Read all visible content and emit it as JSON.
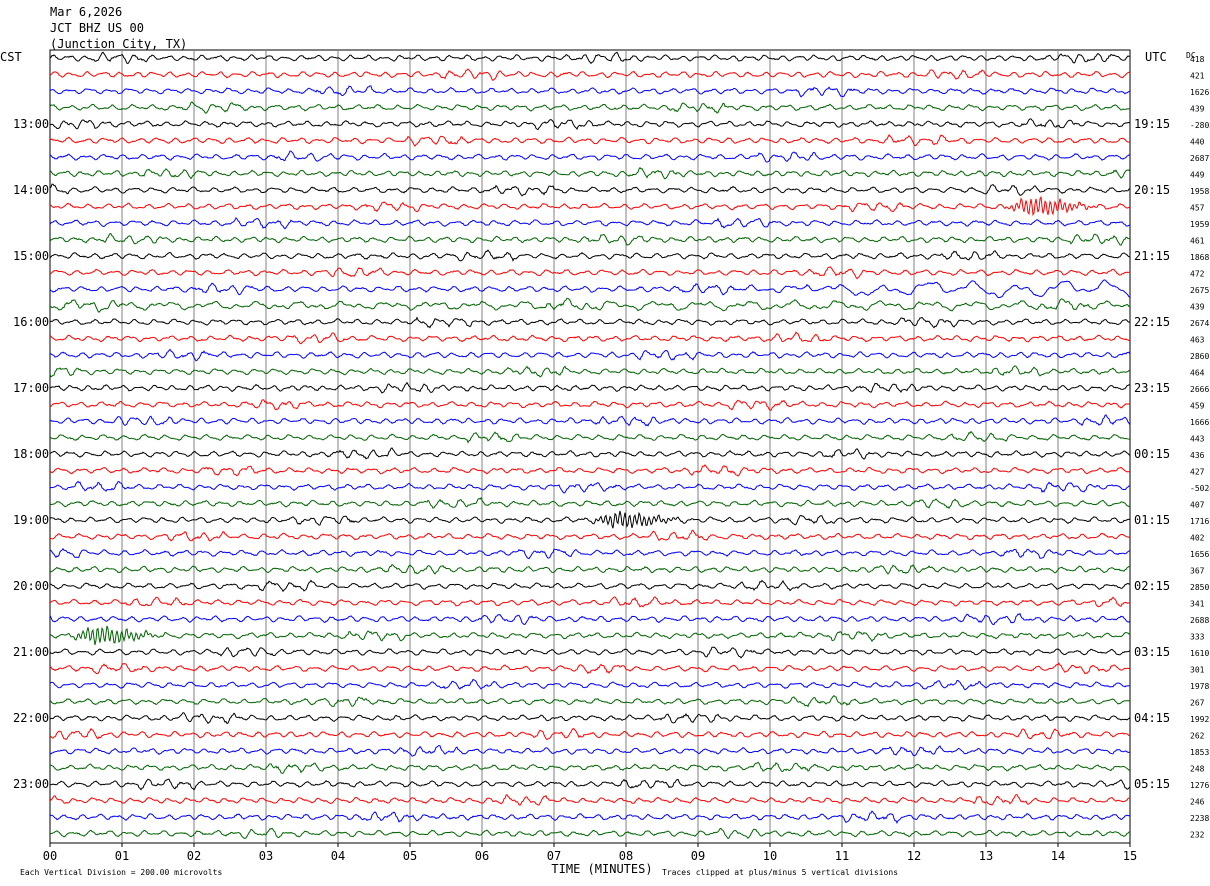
{
  "header": {
    "date": "Mar 6,2026",
    "station": "JCT BHZ US 00",
    "location": "(Junction City, TX)"
  },
  "chart_data": {
    "type": "line",
    "title": "",
    "left_timezone": "CST",
    "right_timezone": "UTC",
    "dc_label": "DC",
    "xlabel": "TIME (MINUTES)",
    "x_ticks": [
      "00",
      "01",
      "02",
      "03",
      "04",
      "05",
      "06",
      "07",
      "08",
      "09",
      "10",
      "11",
      "12",
      "13",
      "14",
      "15"
    ],
    "xlim": [
      0,
      15
    ],
    "left_hour_labels": [
      "13:00",
      "14:00",
      "15:00",
      "16:00",
      "17:00",
      "18:00",
      "19:00",
      "20:00",
      "21:00",
      "22:00",
      "23:00"
    ],
    "right_hour_labels": [
      "19:15",
      "20:15",
      "21:15",
      "22:15",
      "23:15",
      "00:15",
      "01:15",
      "02:15",
      "03:15",
      "04:15",
      "05:15"
    ],
    "dc_values": [
      "418",
      "421",
      "1626",
      "439",
      "-28039",
      "440",
      "2687",
      "449",
      "1958",
      "457",
      "1959",
      "461",
      "1868",
      "472",
      "2675",
      "439",
      "2674",
      "463",
      "2860",
      "464",
      "2666",
      "459",
      "1666",
      "443",
      "436",
      "427",
      "-5024",
      "407",
      "1716",
      "402",
      "1656",
      "367",
      "2850",
      "341",
      "2688",
      "333",
      "1610",
      "301",
      "1978",
      "267",
      "1992",
      "262",
      "1853",
      "248",
      "1276",
      "246",
      "2238",
      "232"
    ],
    "trace_colors": [
      "#000000",
      "#ff0000",
      "#0000ff",
      "#006400"
    ],
    "grid": true,
    "scale_note": "Each Vertical Division =  200.00 microvolts",
    "clip_note": "Traces clipped at plus/minus 5 vertical divisions",
    "events": [
      {
        "trace": 9,
        "minute": 13.65,
        "amplitude": 8
      },
      {
        "trace": 14,
        "minute": 11.0,
        "amplitude": 5,
        "long_period": true
      },
      {
        "trace": 15,
        "minute": 0.5,
        "amplitude": 4,
        "long_period": true
      },
      {
        "trace": 28,
        "minute": 7.9,
        "amplitude": 7
      },
      {
        "trace": 35,
        "minute": 0.65,
        "amplitude": 8
      }
    ]
  }
}
